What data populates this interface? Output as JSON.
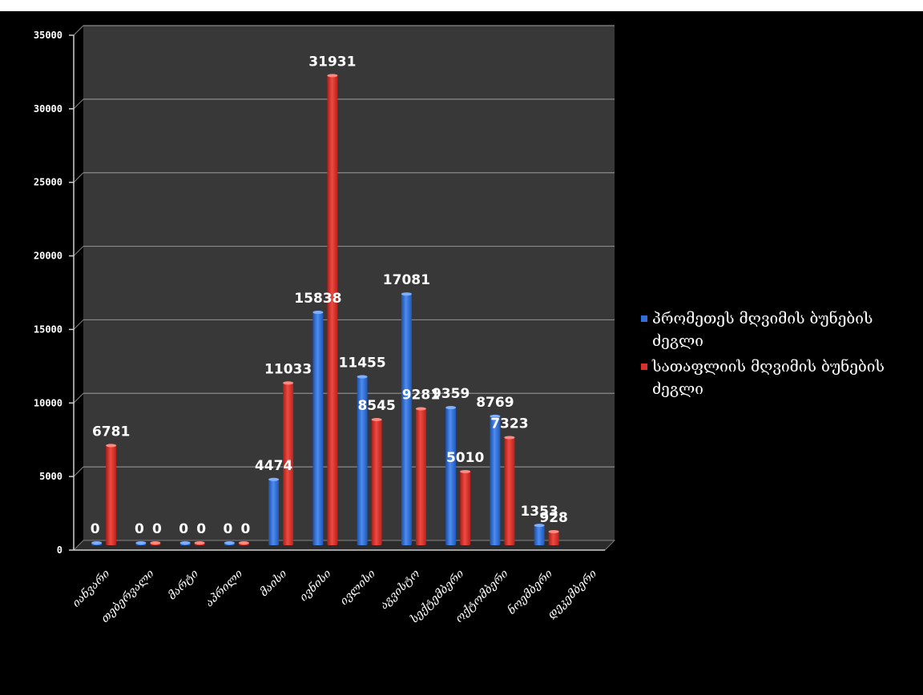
{
  "chart_data": {
    "type": "bar",
    "title": "",
    "xlabel": "",
    "ylabel": "",
    "ylim": [
      0,
      35000
    ],
    "yticks": [
      0,
      5000,
      10000,
      15000,
      20000,
      25000,
      30000,
      35000
    ],
    "grid": true,
    "legend_position": "right",
    "categories": [
      "იანვარი",
      "თებერვალი",
      "მარტი",
      "აპრილი",
      "მაისი",
      "ივნისი",
      "ივლისი",
      "აგვისტო",
      "სექტემბერი",
      "ოქტომბერი",
      "ნოემბერი",
      "დეკემბერი"
    ],
    "series": [
      {
        "name": "პრომეთეს მღვიმის ბუნების ძეგლი",
        "color": "#2f6fd6",
        "values": [
          0,
          0,
          0,
          0,
          4474,
          15838,
          11455,
          17081,
          9359,
          8769,
          1353,
          null
        ],
        "labels": [
          "0",
          "0",
          "0",
          "0",
          "4474",
          "15838",
          "11455",
          "17081",
          "9359",
          "8769",
          "1353",
          ""
        ]
      },
      {
        "name": "სათაფლიის მღვიმის ბუნების ძეგლი",
        "color": "#d9302a",
        "values": [
          6781,
          0,
          0,
          0,
          11033,
          31931,
          8545,
          9281,
          5010,
          7323,
          928,
          null
        ],
        "labels": [
          "6781",
          "0",
          "0",
          "0",
          "11033",
          "31931",
          "8545",
          "9281",
          "5010",
          "7323",
          "928",
          ""
        ]
      }
    ]
  }
}
